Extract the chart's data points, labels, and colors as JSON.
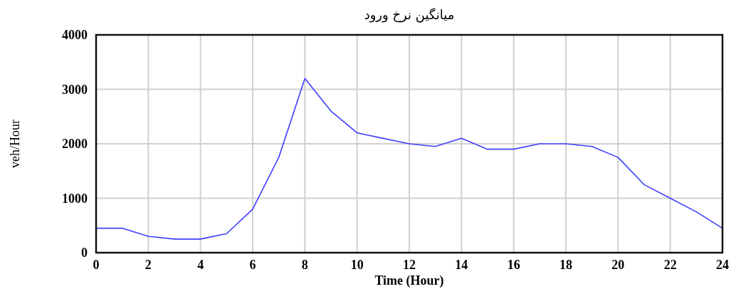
{
  "chart_data": {
    "type": "line",
    "title": "میانگین نرخ ورود",
    "xlabel": "Time (Hour)",
    "ylabel": "veh/Hour",
    "x": [
      0,
      1,
      2,
      3,
      4,
      5,
      6,
      7,
      8,
      9,
      10,
      11,
      12,
      13,
      14,
      15,
      16,
      17,
      18,
      19,
      20,
      21,
      22,
      23,
      24
    ],
    "series": [
      {
        "color": "#3f3fff",
        "values": [
          450,
          450,
          300,
          250,
          250,
          350,
          800,
          1750,
          3200,
          2600,
          2200,
          2100,
          2000,
          1950,
          2100,
          1900,
          1900,
          2000,
          2000,
          1950,
          1750,
          1250,
          1000,
          750,
          450
        ]
      }
    ],
    "xlim": [
      0,
      24
    ],
    "xticks": [
      0,
      2,
      4,
      6,
      8,
      10,
      12,
      14,
      16,
      18,
      20,
      22,
      24
    ],
    "ylim": [
      0,
      4000
    ],
    "yticks": [
      0,
      1000,
      2000,
      3000,
      4000
    ],
    "grid": true,
    "marker": "none",
    "line_style": "solid"
  }
}
